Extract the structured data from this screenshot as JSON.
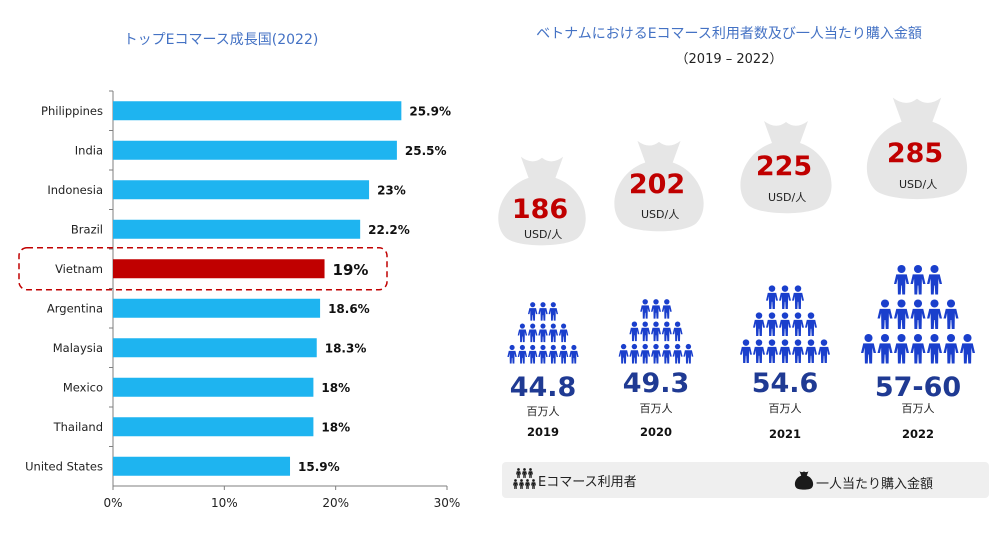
{
  "left_chart": {
    "title": "トップEコマース成長国(2022)",
    "chart_data": {
      "type": "bar",
      "orientation": "horizontal",
      "title": "トップEコマース成長国(2022)",
      "categories": [
        "Philippines",
        "India",
        "Indonesia",
        "Brazil",
        "Vietnam",
        "Argentina",
        "Malaysia",
        "Mexico",
        "Thailand",
        "United States"
      ],
      "values": [
        25.9,
        25.5,
        23,
        22.2,
        19,
        18.6,
        18.3,
        18,
        18,
        15.9
      ],
      "value_labels": [
        "25.9%",
        "25.5%",
        "23%",
        "22.2%",
        "19%",
        "18.6%",
        "18.3%",
        "18%",
        "18%",
        "15.9%"
      ],
      "highlight": "Vietnam",
      "xlim": [
        0,
        30
      ],
      "x_ticks": [
        "0%",
        "10%",
        "20%",
        "30%"
      ],
      "grid": false,
      "colors": {
        "bar": "#1EB4F0",
        "highlight": "#C00000",
        "highlight_box": "#C00000"
      }
    }
  },
  "right_chart": {
    "title_line1": "ベトナムにおけるEコマース利用者数及び一人当たり購入金額",
    "title_line2": "（2019 – 2022）",
    "chart_data": {
      "type": "pictogram",
      "categories": [
        "2019",
        "2020",
        "2021",
        "2022"
      ],
      "series": [
        {
          "name": "Eコマース利用者",
          "values": [
            "44.8",
            "49.3",
            "54.6",
            "57-60"
          ],
          "unit": "百万人"
        },
        {
          "name": "一人当たり購入金額",
          "values": [
            "186",
            "202",
            "225",
            "285"
          ],
          "unit": "USD/人"
        }
      ],
      "colors": {
        "people": "#1A3FCC",
        "people_value": "#1F3A93",
        "spend_value": "#C00000",
        "bag": "#E6E6E6"
      }
    },
    "legend": {
      "users_label": "Eコマース利用者",
      "users_icon": "people-group-icon",
      "spend_label": "一人当たり購入金額",
      "spend_icon": "money-bag-icon"
    }
  }
}
